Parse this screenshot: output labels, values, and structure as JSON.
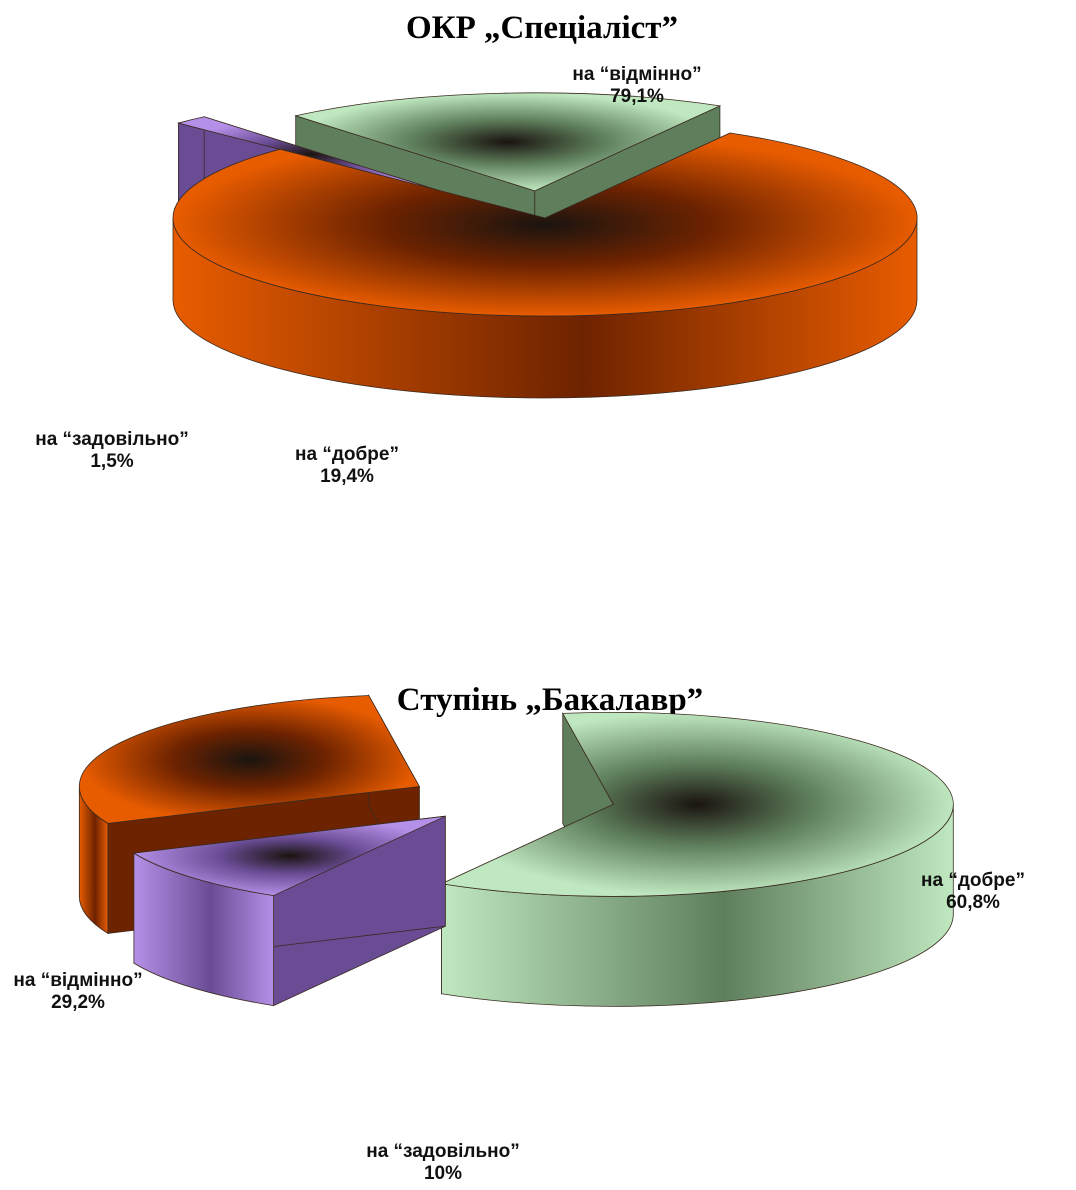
{
  "chart_data": [
    {
      "type": "pie",
      "title": "ОКР „Спеціаліст”",
      "slices": [
        {
          "label": "на “відмінно”",
          "value_text": "79,1%",
          "value": 79.1,
          "color": "#e85c00",
          "dark": "#6e2300"
        },
        {
          "label": "на “задовільно”",
          "value_text": "1,5%",
          "value": 1.5,
          "color": "#b590e8",
          "dark": "#6a4c95"
        },
        {
          "label": "на “добре”",
          "value_text": "19,4%",
          "value": 19.4,
          "color": "#bfe8c0",
          "dark": "#5f7f5c"
        }
      ]
    },
    {
      "type": "pie",
      "title": "Ступінь „Бакалавр”",
      "slices": [
        {
          "label": "на “добре”",
          "value_text": "60,8%",
          "value": 60.8,
          "color": "#bfe8c0",
          "dark": "#5f7f5c"
        },
        {
          "label": "на “задовільно”",
          "value_text": "10%",
          "value": 10,
          "color": "#b590e8",
          "dark": "#6a4c95"
        },
        {
          "label": "на “відмінно”",
          "value_text": "29,2%",
          "value": 29.2,
          "color": "#e85c00",
          "dark": "#6e2300"
        }
      ]
    }
  ]
}
